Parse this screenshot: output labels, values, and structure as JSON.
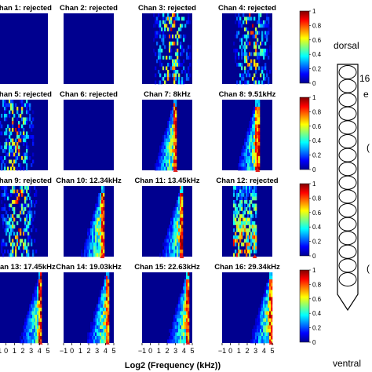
{
  "figure": {
    "xlabel": "Log2 (Frequency (kHz))",
    "x_ticks": [
      "−1",
      "0",
      "1",
      "2",
      "3",
      "4",
      "5"
    ],
    "colorbar_ticks": [
      "1",
      "0.8",
      "0.6",
      "0.4",
      "0.2",
      "0"
    ],
    "probe_labels": {
      "dorsal": "dorsal",
      "ventral": "ventral",
      "count": "16",
      "count_suffix": "e"
    },
    "right_edge_marks": [
      "(",
      "("
    ]
  },
  "chart_data": {
    "type": "heatmap",
    "xlabel": "Log2 (Frequency (kHz))",
    "xlim": [
      -1,
      5
    ],
    "color_range": [
      0,
      1
    ],
    "colormap": "jet",
    "panels": [
      {
        "title": "Chan 1: rejected",
        "status": "rejected",
        "bf_log2": null
      },
      {
        "title": "Chan 2: rejected",
        "status": "rejected",
        "bf_log2": null
      },
      {
        "title": "Chan 3: rejected",
        "status": "rejected",
        "bf_log2": null
      },
      {
        "title": "Chan 4: rejected",
        "status": "rejected",
        "bf_log2": null
      },
      {
        "title": "Chan 5: rejected",
        "status": "rejected",
        "bf_log2": null
      },
      {
        "title": "Chan 6: rejected",
        "status": "rejected",
        "bf_log2": null
      },
      {
        "title": "Chan 7: 8kHz",
        "status": "tuned",
        "bf_log2": 3.0
      },
      {
        "title": "Chan 8: 9.51kHz",
        "status": "tuned",
        "bf_log2": 3.25
      },
      {
        "title": "Chan 9: rejected",
        "status": "rejected",
        "bf_log2": null
      },
      {
        "title": "Chan 10: 12.34kHz",
        "status": "tuned",
        "bf_log2": 3.63
      },
      {
        "title": "Chan 11: 13.45kHz",
        "status": "tuned",
        "bf_log2": 3.75
      },
      {
        "title": "Chan 12: rejected",
        "status": "rejected",
        "bf_log2": 2.9
      },
      {
        "title": "Chan 13: 17.45kHz",
        "status": "tuned",
        "bf_log2": 4.13
      },
      {
        "title": "Chan 14: 19.03kHz",
        "status": "tuned",
        "bf_log2": 4.25
      },
      {
        "title": "Chan 15: 22.63kHz",
        "status": "tuned",
        "bf_log2": 4.5
      },
      {
        "title": "Chan 16: 29.34kHz",
        "status": "tuned",
        "bf_log2": 4.87
      }
    ]
  }
}
